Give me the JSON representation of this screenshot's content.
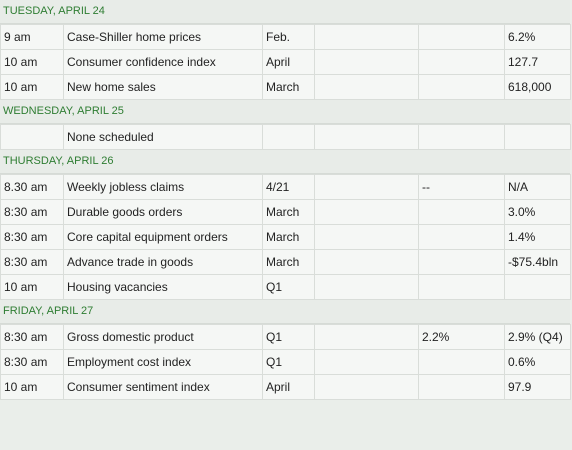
{
  "days": [
    {
      "header": "TUESDAY, APRIL 24",
      "rows": [
        {
          "time": "9 am",
          "event": "Case-Shiller home prices",
          "period": "Feb.",
          "blank": "",
          "forecast": "",
          "previous": "6.2%"
        },
        {
          "time": "10 am",
          "event": "Consumer confidence index",
          "period": "April",
          "blank": "",
          "forecast": "",
          "previous": "127.7"
        },
        {
          "time": "10 am",
          "event": "New home sales",
          "period": "March",
          "blank": "",
          "forecast": "",
          "previous": "618,000"
        }
      ]
    },
    {
      "header": "WEDNESDAY, APRIL 25",
      "rows": [
        {
          "time": "",
          "event": "None scheduled",
          "period": "",
          "blank": "",
          "forecast": "",
          "previous": ""
        }
      ]
    },
    {
      "header": "THURSDAY, APRIL 26",
      "rows": [
        {
          "time": "8.30 am",
          "event": "Weekly jobless claims",
          "period": "4/21",
          "blank": "",
          "forecast": "--",
          "previous": "N/A"
        },
        {
          "time": "8:30 am",
          "event": "Durable goods orders",
          "period": "March",
          "blank": "",
          "forecast": "",
          "previous": "3.0%"
        },
        {
          "time": "8:30 am",
          "event": "Core capital equipment orders",
          "period": "March",
          "blank": "",
          "forecast": "",
          "previous": "1.4%"
        },
        {
          "time": "8:30 am",
          "event": "Advance trade in goods",
          "period": "March",
          "blank": "",
          "forecast": "",
          "previous": "-$75.4bln"
        },
        {
          "time": "10 am",
          "event": "Housing vacancies",
          "period": "Q1",
          "blank": "",
          "forecast": "",
          "previous": ""
        }
      ]
    },
    {
      "header": "FRIDAY, APRIL 27",
      "rows": [
        {
          "time": "8:30 am",
          "event": "Gross domestic product",
          "period": "Q1",
          "blank": "",
          "forecast": "2.2%",
          "previous": "2.9% (Q4)"
        },
        {
          "time": "8:30 am",
          "event": "Employment cost index",
          "period": "Q1",
          "blank": "",
          "forecast": "",
          "previous": "0.6%"
        },
        {
          "time": "10 am",
          "event": "Consumer sentiment index",
          "period": "April",
          "blank": "",
          "forecast": "",
          "previous": "97.9"
        }
      ]
    }
  ]
}
